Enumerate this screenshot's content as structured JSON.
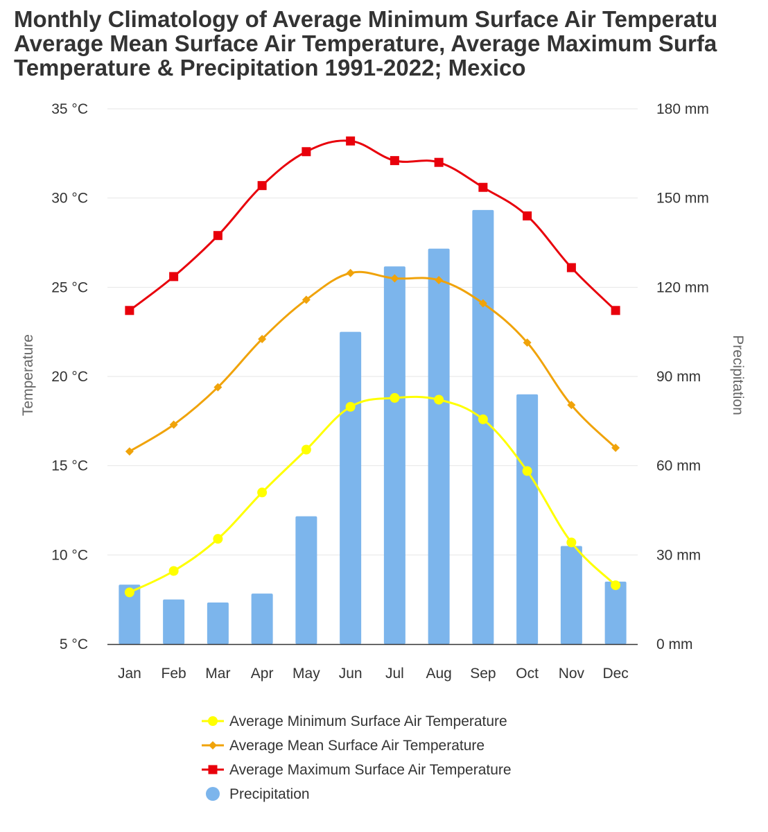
{
  "chart_data": {
    "type": "bar+line",
    "title_lines": [
      "Monthly Climatology of Average Minimum Surface Air Temperatu",
      "Average Mean Surface Air Temperature, Average Maximum Surfa",
      "Temperature & Precipitation 1991-2022; Mexico"
    ],
    "categories": [
      "Jan",
      "Feb",
      "Mar",
      "Apr",
      "May",
      "Jun",
      "Jul",
      "Aug",
      "Sep",
      "Oct",
      "Nov",
      "Dec"
    ],
    "y_left": {
      "label": "Temperature",
      "range": [
        5,
        35
      ],
      "ticks": [
        {
          "value": 5,
          "label": "5 °C"
        },
        {
          "value": 10,
          "label": "10 °C"
        },
        {
          "value": 15,
          "label": "15 °C"
        },
        {
          "value": 20,
          "label": "20 °C"
        },
        {
          "value": 25,
          "label": "25 °C"
        },
        {
          "value": 30,
          "label": "30 °C"
        },
        {
          "value": 35,
          "label": "35 °C"
        }
      ]
    },
    "y_right": {
      "label": "Precipitation",
      "range": [
        0,
        180
      ],
      "ticks": [
        {
          "value": 0,
          "label": "0 mm"
        },
        {
          "value": 30,
          "label": "30 mm"
        },
        {
          "value": 60,
          "label": "60 mm"
        },
        {
          "value": 90,
          "label": "90 mm"
        },
        {
          "value": 120,
          "label": "120 mm"
        },
        {
          "value": 150,
          "label": "150 mm"
        },
        {
          "value": 180,
          "label": "180 mm"
        }
      ]
    },
    "series": [
      {
        "name": "Average Minimum Surface Air Temperature",
        "kind": "line",
        "axis": "left",
        "marker": "circle",
        "color": "#ffff00",
        "values": [
          7.9,
          9.1,
          10.9,
          13.5,
          15.9,
          18.3,
          18.8,
          18.7,
          17.6,
          14.7,
          10.7,
          8.3
        ]
      },
      {
        "name": "Average Mean Surface Air Temperature",
        "kind": "line",
        "axis": "left",
        "marker": "diamond",
        "color": "#f0a30a",
        "values": [
          15.8,
          17.3,
          19.4,
          22.1,
          24.3,
          25.8,
          25.5,
          25.4,
          24.1,
          21.9,
          18.4,
          16.0
        ]
      },
      {
        "name": "Average Maximum Surface Air Temperature",
        "kind": "line",
        "axis": "left",
        "marker": "square",
        "color": "#e8000b",
        "values": [
          23.7,
          25.6,
          27.9,
          30.7,
          32.6,
          33.2,
          32.1,
          32.0,
          30.6,
          29.0,
          26.1,
          23.7
        ]
      },
      {
        "name": "Precipitation",
        "kind": "bar",
        "axis": "right",
        "marker": "circle",
        "color": "#7cb5ec",
        "values": [
          20,
          15,
          14,
          17,
          43,
          105,
          127,
          133,
          146,
          84,
          33,
          21
        ]
      }
    ],
    "legend_position": "bottom"
  }
}
